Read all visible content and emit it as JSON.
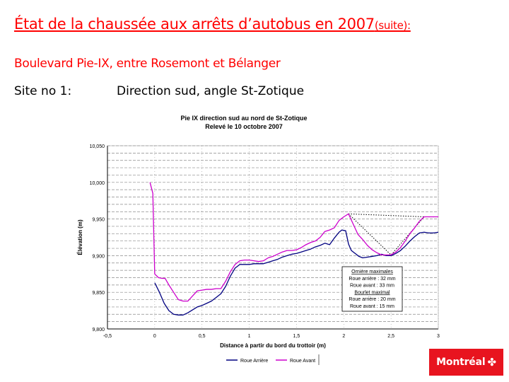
{
  "slide": {
    "title": "État de la chaussée aux arrêts d’autobus en 2007",
    "title_suffix": "(suite): ",
    "subtitle": "Boulevard Pie-IX, entre Rosemont et Bélanger",
    "site_label": "Site no 1:",
    "site_desc": "Direction sud, angle St-Zotique",
    "accent_color": "#ff0000"
  },
  "logo": {
    "text": "Montréal",
    "icon": "montreal-rosette-icon",
    "color": "#e8141f"
  },
  "chart_data": {
    "type": "line",
    "title": [
      "Pie IX direction sud au nord de St-Zotique",
      "Relevé le 10 octobre 2007"
    ],
    "xlabel": "Distance à partir du bord du trottoir (m)",
    "ylabel": "Élévation (m)",
    "xlim": [
      -0.5,
      3
    ],
    "ylim": [
      9.8,
      10.05
    ],
    "x_ticks": [
      -0.5,
      0,
      0.5,
      1,
      1.5,
      2,
      2.5,
      3
    ],
    "x_tick_labels": [
      "-0,5",
      "0",
      "0,5",
      "1",
      "1,5",
      "2",
      "2,5",
      "3"
    ],
    "y_ticks": [
      9.8,
      9.85,
      9.9,
      9.95,
      10.0,
      10.05
    ],
    "y_tick_labels": [
      "9,800",
      "9,850",
      "9,900",
      "9,950",
      "10,000",
      "10,050"
    ],
    "grid": true,
    "legend_position": "bottom",
    "series": [
      {
        "name": "Roue Arrière",
        "color": "#000080",
        "points": [
          [
            0,
            9.863
          ],
          [
            0.05,
            9.85
          ],
          [
            0.1,
            9.835
          ],
          [
            0.15,
            9.825
          ],
          [
            0.2,
            9.82
          ],
          [
            0.25,
            9.819
          ],
          [
            0.3,
            9.819
          ],
          [
            0.35,
            9.822
          ],
          [
            0.4,
            9.826
          ],
          [
            0.45,
            9.83
          ],
          [
            0.5,
            9.832
          ],
          [
            0.55,
            9.835
          ],
          [
            0.6,
            9.838
          ],
          [
            0.65,
            9.843
          ],
          [
            0.7,
            9.848
          ],
          [
            0.75,
            9.858
          ],
          [
            0.8,
            9.872
          ],
          [
            0.85,
            9.883
          ],
          [
            0.9,
            9.888
          ],
          [
            0.95,
            9.888
          ],
          [
            1,
            9.888
          ],
          [
            1.05,
            9.889
          ],
          [
            1.1,
            9.889
          ],
          [
            1.15,
            9.889
          ],
          [
            1.2,
            9.891
          ],
          [
            1.25,
            9.893
          ],
          [
            1.3,
            9.895
          ],
          [
            1.35,
            9.898
          ],
          [
            1.4,
            9.9
          ],
          [
            1.45,
            9.902
          ],
          [
            1.5,
            9.903
          ],
          [
            1.55,
            9.905
          ],
          [
            1.6,
            9.907
          ],
          [
            1.65,
            9.909
          ],
          [
            1.7,
            9.912
          ],
          [
            1.75,
            9.914
          ],
          [
            1.8,
            9.917
          ],
          [
            1.85,
            9.915
          ],
          [
            1.9,
            9.924
          ],
          [
            1.95,
            9.932
          ],
          [
            1.98,
            9.935
          ],
          [
            2.02,
            9.934
          ],
          [
            2.05,
            9.916
          ],
          [
            2.08,
            9.907
          ],
          [
            2.12,
            9.903
          ],
          [
            2.16,
            9.899
          ],
          [
            2.2,
            9.897
          ],
          [
            2.25,
            9.898
          ],
          [
            2.3,
            9.899
          ],
          [
            2.35,
            9.9
          ],
          [
            2.4,
            9.902
          ],
          [
            2.45,
            9.9
          ],
          [
            2.5,
            9.9
          ],
          [
            2.55,
            9.903
          ],
          [
            2.6,
            9.907
          ],
          [
            2.65,
            9.913
          ],
          [
            2.7,
            9.92
          ],
          [
            2.75,
            9.926
          ],
          [
            2.8,
            9.931
          ],
          [
            2.85,
            9.932
          ],
          [
            2.9,
            9.931
          ],
          [
            2.95,
            9.931
          ],
          [
            3,
            9.932
          ]
        ]
      },
      {
        "name": "Roue Avant",
        "color": "#cc00cc",
        "points": [
          [
            -0.05,
            10.0
          ],
          [
            -0.02,
            9.985
          ],
          [
            0,
            9.875
          ],
          [
            0.04,
            9.87
          ],
          [
            0.08,
            9.869
          ],
          [
            0.11,
            9.869
          ],
          [
            0.15,
            9.86
          ],
          [
            0.2,
            9.85
          ],
          [
            0.25,
            9.84
          ],
          [
            0.3,
            9.838
          ],
          [
            0.35,
            9.838
          ],
          [
            0.4,
            9.845
          ],
          [
            0.45,
            9.852
          ],
          [
            0.5,
            9.853
          ],
          [
            0.55,
            9.854
          ],
          [
            0.6,
            9.854
          ],
          [
            0.65,
            9.855
          ],
          [
            0.7,
            9.855
          ],
          [
            0.75,
            9.865
          ],
          [
            0.8,
            9.878
          ],
          [
            0.85,
            9.888
          ],
          [
            0.9,
            9.893
          ],
          [
            0.95,
            9.894
          ],
          [
            1,
            9.894
          ],
          [
            1.05,
            9.893
          ],
          [
            1.1,
            9.892
          ],
          [
            1.15,
            9.893
          ],
          [
            1.2,
            9.897
          ],
          [
            1.25,
            9.899
          ],
          [
            1.3,
            9.902
          ],
          [
            1.35,
            9.905
          ],
          [
            1.4,
            9.907
          ],
          [
            1.45,
            9.907
          ],
          [
            1.5,
            9.908
          ],
          [
            1.55,
            9.911
          ],
          [
            1.6,
            9.915
          ],
          [
            1.65,
            9.918
          ],
          [
            1.7,
            9.92
          ],
          [
            1.75,
            9.925
          ],
          [
            1.8,
            9.933
          ],
          [
            1.85,
            9.935
          ],
          [
            1.9,
            9.938
          ],
          [
            1.95,
            9.948
          ],
          [
            2,
            9.953
          ],
          [
            2.05,
            9.957
          ],
          [
            2.1,
            9.943
          ],
          [
            2.15,
            9.929
          ],
          [
            2.2,
            9.922
          ],
          [
            2.25,
            9.914
          ],
          [
            2.3,
            9.908
          ],
          [
            2.35,
            9.904
          ],
          [
            2.4,
            9.901
          ],
          [
            2.45,
            9.901
          ],
          [
            2.5,
            9.901
          ],
          [
            2.55,
            9.905
          ],
          [
            2.6,
            9.911
          ],
          [
            2.65,
            9.92
          ],
          [
            2.7,
            9.93
          ],
          [
            2.75,
            9.938
          ],
          [
            2.8,
            9.947
          ],
          [
            2.85,
            9.953
          ],
          [
            2.9,
            9.953
          ],
          [
            2.95,
            9.953
          ],
          [
            3,
            9.953
          ]
        ]
      }
    ],
    "annotation_lines": [
      {
        "style": "dotted",
        "color": "#000000",
        "points": [
          [
            2.05,
            9.957
          ],
          [
            2.5,
            9.901
          ],
          [
            2.85,
            9.953
          ]
        ]
      },
      {
        "style": "dotted",
        "color": "#000000",
        "points": [
          [
            2.05,
            9.957
          ],
          [
            2.85,
            9.953
          ]
        ]
      }
    ],
    "info_box": {
      "lines": [
        {
          "text": "Ornière maximales",
          "underline": true
        },
        {
          "text": "Roue arrière : 32 mm",
          "underline": false
        },
        {
          "text": "Roue avant : 33 mm",
          "underline": false
        },
        {
          "text": "Bourlet maximal",
          "underline": true
        },
        {
          "text": "Roue arrière : 20 mm",
          "underline": false
        },
        {
          "text": "Roue avant : 15 mm",
          "underline": false
        }
      ]
    }
  }
}
